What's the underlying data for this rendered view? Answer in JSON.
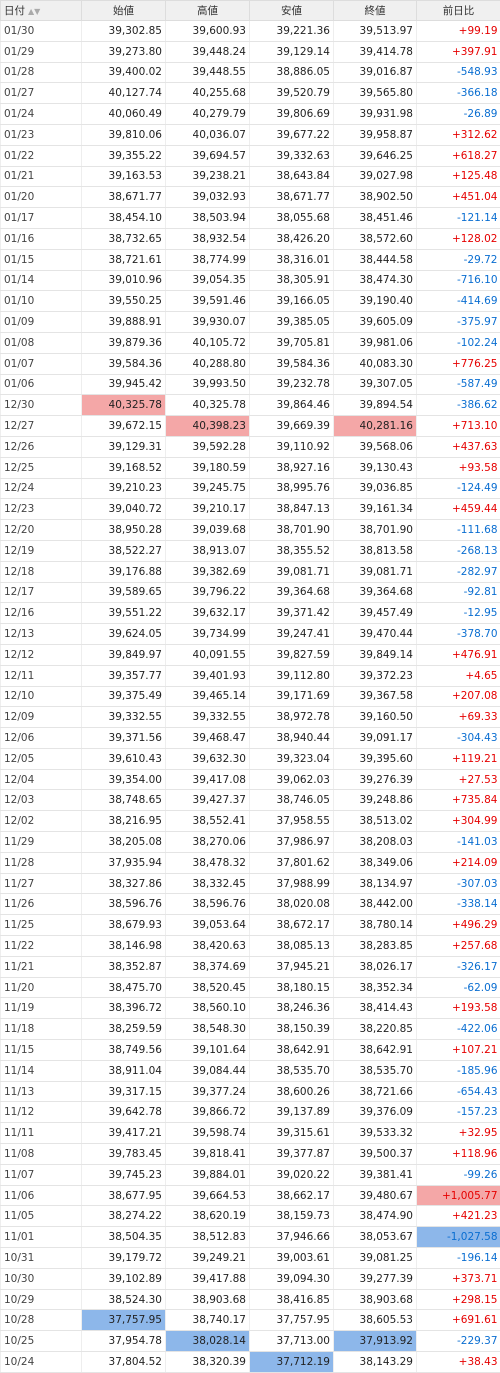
{
  "table": {
    "header": [
      "日付",
      "始値",
      "高値",
      "安値",
      "終値",
      "前日比"
    ],
    "highlight": {
      "max_color": "#f4a7a7",
      "min_color": "#8db7ea",
      "max_columns": [
        1,
        2,
        4,
        5
      ],
      "min_columns": [
        1,
        2,
        3,
        4,
        5
      ]
    },
    "rows": [
      [
        "01/30",
        "39,302.85",
        "39,600.93",
        "39,221.36",
        "39,513.97",
        "+99.19"
      ],
      [
        "01/29",
        "39,273.80",
        "39,448.24",
        "39,129.14",
        "39,414.78",
        "+397.91"
      ],
      [
        "01/28",
        "39,400.02",
        "39,448.55",
        "38,886.05",
        "39,016.87",
        "-548.93"
      ],
      [
        "01/27",
        "40,127.74",
        "40,255.68",
        "39,520.79",
        "39,565.80",
        "-366.18"
      ],
      [
        "01/24",
        "40,060.49",
        "40,279.79",
        "39,806.69",
        "39,931.98",
        "-26.89"
      ],
      [
        "01/23",
        "39,810.06",
        "40,036.07",
        "39,677.22",
        "39,958.87",
        "+312.62"
      ],
      [
        "01/22",
        "39,355.22",
        "39,694.57",
        "39,332.63",
        "39,646.25",
        "+618.27"
      ],
      [
        "01/21",
        "39,163.53",
        "39,238.21",
        "38,643.84",
        "39,027.98",
        "+125.48"
      ],
      [
        "01/20",
        "38,671.77",
        "39,032.93",
        "38,671.77",
        "38,902.50",
        "+451.04"
      ],
      [
        "01/17",
        "38,454.10",
        "38,503.94",
        "38,055.68",
        "38,451.46",
        "-121.14"
      ],
      [
        "01/16",
        "38,732.65",
        "38,932.54",
        "38,426.20",
        "38,572.60",
        "+128.02"
      ],
      [
        "01/15",
        "38,721.61",
        "38,774.99",
        "38,316.01",
        "38,444.58",
        "-29.72"
      ],
      [
        "01/14",
        "39,010.96",
        "39,054.35",
        "38,305.91",
        "38,474.30",
        "-716.10"
      ],
      [
        "01/10",
        "39,550.25",
        "39,591.46",
        "39,166.05",
        "39,190.40",
        "-414.69"
      ],
      [
        "01/09",
        "39,888.91",
        "39,930.07",
        "39,385.05",
        "39,605.09",
        "-375.97"
      ],
      [
        "01/08",
        "39,879.36",
        "40,105.72",
        "39,705.81",
        "39,981.06",
        "-102.24"
      ],
      [
        "01/07",
        "39,584.36",
        "40,288.80",
        "39,584.36",
        "40,083.30",
        "+776.25"
      ],
      [
        "01/06",
        "39,945.42",
        "39,993.50",
        "39,232.78",
        "39,307.05",
        "-587.49"
      ],
      [
        "12/30",
        "40,325.78",
        "40,325.78",
        "39,864.46",
        "39,894.54",
        "-386.62"
      ],
      [
        "12/27",
        "39,672.15",
        "40,398.23",
        "39,669.39",
        "40,281.16",
        "+713.10"
      ],
      [
        "12/26",
        "39,129.31",
        "39,592.28",
        "39,110.92",
        "39,568.06",
        "+437.63"
      ],
      [
        "12/25",
        "39,168.52",
        "39,180.59",
        "38,927.16",
        "39,130.43",
        "+93.58"
      ],
      [
        "12/24",
        "39,210.23",
        "39,245.75",
        "38,995.76",
        "39,036.85",
        "-124.49"
      ],
      [
        "12/23",
        "39,040.72",
        "39,210.17",
        "38,847.13",
        "39,161.34",
        "+459.44"
      ],
      [
        "12/20",
        "38,950.28",
        "39,039.68",
        "38,701.90",
        "38,701.90",
        "-111.68"
      ],
      [
        "12/19",
        "38,522.27",
        "38,913.07",
        "38,355.52",
        "38,813.58",
        "-268.13"
      ],
      [
        "12/18",
        "39,176.88",
        "39,382.69",
        "39,081.71",
        "39,081.71",
        "-282.97"
      ],
      [
        "12/17",
        "39,589.65",
        "39,796.22",
        "39,364.68",
        "39,364.68",
        "-92.81"
      ],
      [
        "12/16",
        "39,551.22",
        "39,632.17",
        "39,371.42",
        "39,457.49",
        "-12.95"
      ],
      [
        "12/13",
        "39,624.05",
        "39,734.99",
        "39,247.41",
        "39,470.44",
        "-378.70"
      ],
      [
        "12/12",
        "39,849.97",
        "40,091.55",
        "39,827.59",
        "39,849.14",
        "+476.91"
      ],
      [
        "12/11",
        "39,357.77",
        "39,401.93",
        "39,112.80",
        "39,372.23",
        "+4.65"
      ],
      [
        "12/10",
        "39,375.49",
        "39,465.14",
        "39,171.69",
        "39,367.58",
        "+207.08"
      ],
      [
        "12/09",
        "39,332.55",
        "39,332.55",
        "38,972.78",
        "39,160.50",
        "+69.33"
      ],
      [
        "12/06",
        "39,371.56",
        "39,468.47",
        "38,940.44",
        "39,091.17",
        "-304.43"
      ],
      [
        "12/05",
        "39,610.43",
        "39,632.30",
        "39,323.04",
        "39,395.60",
        "+119.21"
      ],
      [
        "12/04",
        "39,354.00",
        "39,417.08",
        "39,062.03",
        "39,276.39",
        "+27.53"
      ],
      [
        "12/03",
        "38,748.65",
        "39,427.37",
        "38,746.05",
        "39,248.86",
        "+735.84"
      ],
      [
        "12/02",
        "38,216.95",
        "38,552.41",
        "37,958.55",
        "38,513.02",
        "+304.99"
      ],
      [
        "11/29",
        "38,205.08",
        "38,270.06",
        "37,986.97",
        "38,208.03",
        "-141.03"
      ],
      [
        "11/28",
        "37,935.94",
        "38,478.32",
        "37,801.62",
        "38,349.06",
        "+214.09"
      ],
      [
        "11/27",
        "38,327.86",
        "38,332.45",
        "37,988.99",
        "38,134.97",
        "-307.03"
      ],
      [
        "11/26",
        "38,596.76",
        "38,596.76",
        "38,020.08",
        "38,442.00",
        "-338.14"
      ],
      [
        "11/25",
        "38,679.93",
        "39,053.64",
        "38,672.17",
        "38,780.14",
        "+496.29"
      ],
      [
        "11/22",
        "38,146.98",
        "38,420.63",
        "38,085.13",
        "38,283.85",
        "+257.68"
      ],
      [
        "11/21",
        "38,352.87",
        "38,374.69",
        "37,945.21",
        "38,026.17",
        "-326.17"
      ],
      [
        "11/20",
        "38,475.70",
        "38,520.45",
        "38,180.15",
        "38,352.34",
        "-62.09"
      ],
      [
        "11/19",
        "38,396.72",
        "38,560.10",
        "38,246.36",
        "38,414.43",
        "+193.58"
      ],
      [
        "11/18",
        "38,259.59",
        "38,548.30",
        "38,150.39",
        "38,220.85",
        "-422.06"
      ],
      [
        "11/15",
        "38,749.56",
        "39,101.64",
        "38,642.91",
        "38,642.91",
        "+107.21"
      ],
      [
        "11/14",
        "38,911.04",
        "39,084.44",
        "38,535.70",
        "38,535.70",
        "-185.96"
      ],
      [
        "11/13",
        "39,317.15",
        "39,377.24",
        "38,600.26",
        "38,721.66",
        "-654.43"
      ],
      [
        "11/12",
        "39,642.78",
        "39,866.72",
        "39,137.89",
        "39,376.09",
        "-157.23"
      ],
      [
        "11/11",
        "39,417.21",
        "39,598.74",
        "39,315.61",
        "39,533.32",
        "+32.95"
      ],
      [
        "11/08",
        "39,783.45",
        "39,818.41",
        "39,377.87",
        "39,500.37",
        "+118.96"
      ],
      [
        "11/07",
        "39,745.23",
        "39,884.01",
        "39,020.22",
        "39,381.41",
        "-99.26"
      ],
      [
        "11/06",
        "38,677.95",
        "39,664.53",
        "38,662.17",
        "39,480.67",
        "+1,005.77"
      ],
      [
        "11/05",
        "38,274.22",
        "38,620.19",
        "38,159.73",
        "38,474.90",
        "+421.23"
      ],
      [
        "11/01",
        "38,504.35",
        "38,512.83",
        "37,946.66",
        "38,053.67",
        "-1,027.58"
      ],
      [
        "10/31",
        "39,179.72",
        "39,249.21",
        "39,003.61",
        "39,081.25",
        "-196.14"
      ],
      [
        "10/30",
        "39,102.89",
        "39,417.88",
        "39,094.30",
        "39,277.39",
        "+373.71"
      ],
      [
        "10/29",
        "38,524.30",
        "38,903.68",
        "38,416.85",
        "38,903.68",
        "+298.15"
      ],
      [
        "10/28",
        "37,757.95",
        "38,740.17",
        "37,757.95",
        "38,605.53",
        "+691.61"
      ],
      [
        "10/25",
        "37,954.78",
        "38,028.14",
        "37,713.00",
        "37,913.92",
        "-229.37"
      ],
      [
        "10/24",
        "37,804.52",
        "38,320.39",
        "37,712.19",
        "38,143.29",
        "+38.43"
      ]
    ]
  }
}
